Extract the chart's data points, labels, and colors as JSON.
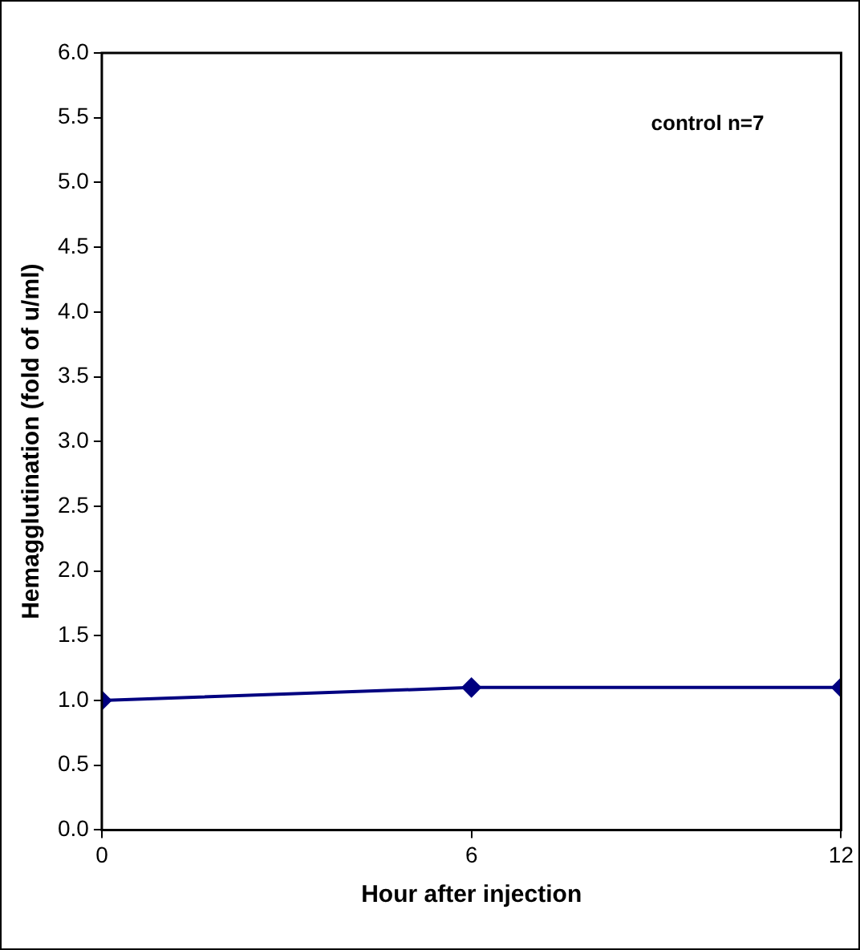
{
  "chart_data": {
    "type": "line",
    "xlabel": "Hour after injection",
    "ylabel": "Hemagglutination (fold of u/ml)",
    "annotations": [
      "control n=7"
    ],
    "x": [
      0,
      6,
      12
    ],
    "series": [
      {
        "color": "#000080",
        "values": [
          1.0,
          1.1,
          1.1
        ]
      }
    ],
    "xlim": [
      0,
      12
    ],
    "xticks": [
      0,
      6,
      12
    ],
    "ylim": [
      0,
      6
    ],
    "yticks": [
      {
        "value": 0,
        "label": "0.0"
      },
      0.5,
      {
        "value": 1,
        "label": "1.0"
      },
      1.5,
      {
        "value": 2,
        "label": "2.0"
      },
      2.5,
      {
        "value": 3,
        "label": "3.0"
      },
      3.5,
      {
        "value": 4,
        "label": "4.0"
      },
      4.5,
      {
        "value": 5,
        "label": "5.0"
      },
      5.5,
      {
        "value": 6,
        "label": "6.0"
      }
    ],
    "grid": false,
    "legend": false,
    "marker": "diamond",
    "line_style": "solid"
  }
}
